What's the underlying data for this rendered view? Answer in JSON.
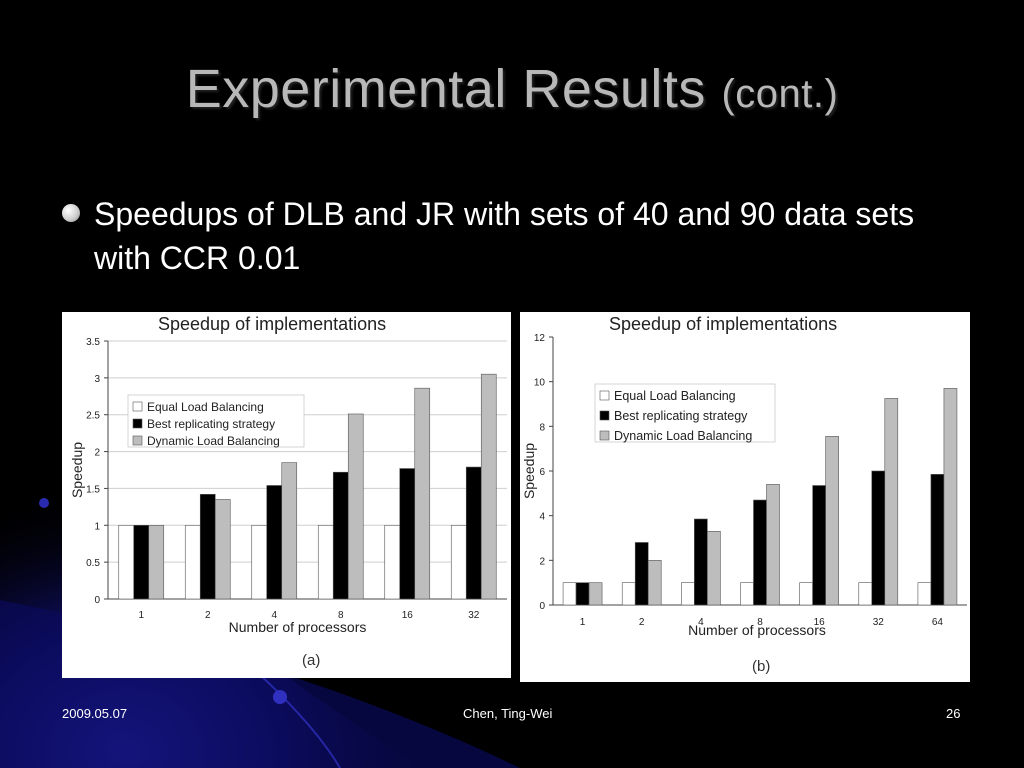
{
  "slide": {
    "title_main": "Experimental Results",
    "title_small": "(cont.)",
    "bullet": "Speedups of DLB and JR with sets of 40 and 90 data sets with CCR 0.01",
    "footer_date": "2009.05.07",
    "footer_author": "Chen, Ting-Wei",
    "footer_page": "26"
  },
  "colors": {
    "background": "#000000",
    "equal": "#ffffff",
    "best": "#000000",
    "dynamic": "#bdbdbd"
  },
  "chart_data": [
    {
      "type": "bar",
      "title": "Speedup of implementations",
      "sublabel": "(a)",
      "xlabel": "Number of processors",
      "ylabel": "Speedup",
      "categories": [
        "1",
        "2",
        "4",
        "8",
        "16",
        "32"
      ],
      "ylim": [
        0,
        3.5
      ],
      "yticks": [
        "0",
        "0.5",
        "1",
        "1.5",
        "2",
        "2.5",
        "3",
        "3.5"
      ],
      "grid": true,
      "legend_position": "upper-left",
      "series": [
        {
          "name": "Equal Load Balancing",
          "values": [
            1,
            1,
            1,
            1,
            1,
            1
          ]
        },
        {
          "name": "Best replicating strategy",
          "values": [
            1,
            1.42,
            1.54,
            1.72,
            1.77,
            1.79
          ]
        },
        {
          "name": "Dynamic Load Balancing",
          "values": [
            1,
            1.35,
            1.85,
            2.51,
            2.86,
            3.05
          ]
        }
      ]
    },
    {
      "type": "bar",
      "title": "Speedup of implementations",
      "sublabel": "(b)",
      "xlabel": "Number of processors",
      "ylabel": "Speedup",
      "categories": [
        "1",
        "2",
        "4",
        "8",
        "16",
        "32",
        "64"
      ],
      "ylim": [
        0,
        12
      ],
      "yticks": [
        "0",
        "2",
        "4",
        "6",
        "8",
        "10",
        "12"
      ],
      "grid": false,
      "legend_position": "upper-left",
      "series": [
        {
          "name": "Equal Load Balancing",
          "values": [
            1,
            1,
            1,
            1,
            1,
            1,
            1
          ]
        },
        {
          "name": "Best replicating strategy",
          "values": [
            1,
            2.8,
            3.85,
            4.7,
            5.35,
            6,
            5.85
          ]
        },
        {
          "name": "Dynamic Load Balancing",
          "values": [
            1,
            2,
            3.3,
            5.4,
            7.55,
            9.25,
            9.7
          ]
        }
      ]
    }
  ]
}
